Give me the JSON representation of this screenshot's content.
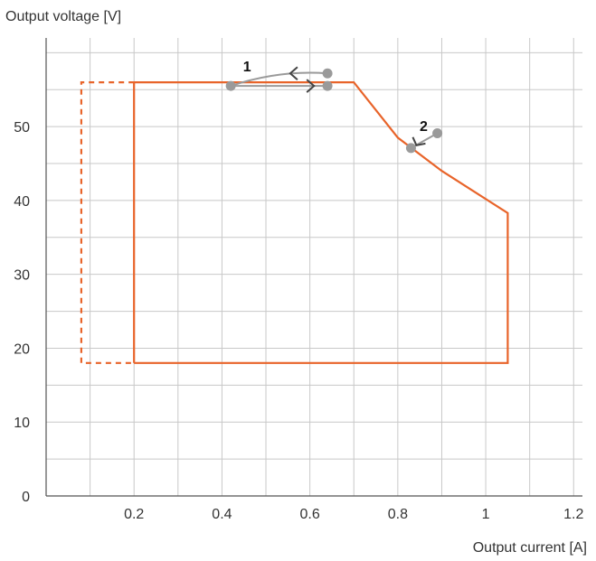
{
  "chart_data": {
    "type": "line",
    "ylabel": "Output voltage [V]",
    "xlabel": "Output current [A]",
    "xlim": [
      0,
      1.22
    ],
    "ylim": [
      0,
      62
    ],
    "x_ticks": [
      0.2,
      0.4,
      0.6,
      0.8,
      1,
      1.2
    ],
    "x_tick_labels": [
      "0.2",
      "0.4",
      "0.6",
      "0.8",
      "1",
      "1.2"
    ],
    "y_ticks": [
      0,
      10,
      20,
      30,
      40,
      50
    ],
    "y_tick_labels": [
      "0",
      "10",
      "20",
      "30",
      "40",
      "50"
    ],
    "grid": true,
    "colors": {
      "series": "#e8642a",
      "annotation": "#9a9a9a",
      "grid": "#c8c8c8",
      "axis": "#555555"
    },
    "series": [
      {
        "style": "solid",
        "points": [
          [
            0.2,
            18
          ],
          [
            0.2,
            56
          ],
          [
            0.7,
            56
          ],
          [
            0.8,
            48.5
          ],
          [
            0.9,
            44
          ],
          [
            1.05,
            38.3
          ],
          [
            1.05,
            18
          ],
          [
            0.2,
            18
          ]
        ]
      },
      {
        "style": "dashed",
        "points": [
          [
            0.2,
            56
          ],
          [
            0.08,
            56
          ],
          [
            0.08,
            18
          ],
          [
            0.2,
            18
          ]
        ]
      }
    ],
    "annotations": [
      {
        "label": "1",
        "from": [
          0.42,
          55.5
        ],
        "to": [
          0.64,
          55.5
        ],
        "arrow_forward": [
          0.63,
          55.5
        ],
        "arrow_back_from": [
          0.64,
          57.2
        ],
        "arrow_back_to": [
          0.58,
          57.2
        ]
      },
      {
        "label": "2",
        "from": [
          0.83,
          47.1
        ],
        "to": [
          0.89,
          49.1
        ]
      }
    ]
  }
}
